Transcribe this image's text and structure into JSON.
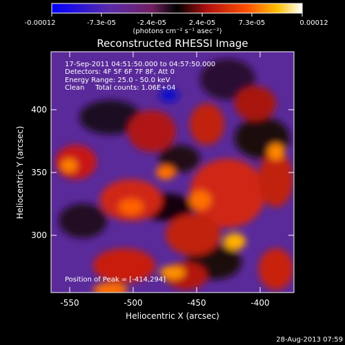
{
  "chart_data": {
    "type": "heatmap",
    "title": "Reconstructed RHESSI Image",
    "xlabel": "Heliocentric X (arcsec)",
    "ylabel": "Heliocentric Y (arcsec)",
    "x_ticks": [
      "-550",
      "-500",
      "-450",
      "-400"
    ],
    "y_ticks": [
      "300",
      "350",
      "400"
    ],
    "xlim": [
      -565,
      -374
    ],
    "ylim": [
      254,
      444
    ],
    "colorbar": {
      "ticks": [
        "-0.00012",
        "-7.3e-05",
        "-2.4e-05",
        "2.4e-05",
        "7.3e-05",
        "0.00012"
      ],
      "range": [
        -0.00012,
        0.00012
      ],
      "label": "(photons cm⁻² s⁻¹ asec⁻²)"
    },
    "annotations": [
      "17-Sep-2011 04:51:50.000 to 04:57:50.000",
      "Detectors: 4F 5F 6F 7F 8F, Att 0",
      "Energy Range: 25.0 - 50.0 keV",
      "Clean     Total counts: 1.06E+04"
    ],
    "peak": {
      "label": "Position of Peak = [-414,294]",
      "x": -414,
      "y": 294
    },
    "footer": "28-Aug-2013 07:59"
  }
}
